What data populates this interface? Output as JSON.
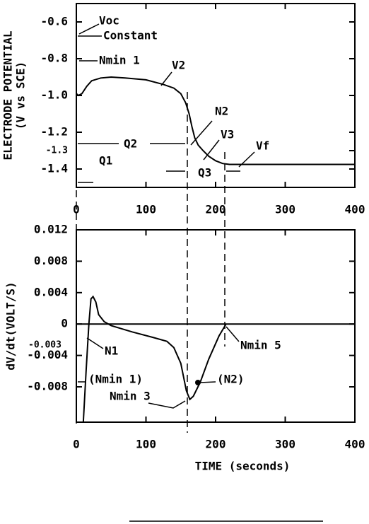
{
  "chart_data": [
    {
      "type": "line",
      "ylabel": "ELECTRODE POTENTIAL",
      "ylabel_sub": "(V vs SCE)",
      "x": [
        0,
        0,
        3,
        8,
        15,
        22,
        35,
        50,
        70,
        100,
        125,
        140,
        150,
        157,
        162,
        166,
        170,
        175,
        182,
        190,
        200,
        210,
        220,
        260,
        400
      ],
      "values": [
        -0.66,
        -0.99,
        -1.0,
        -0.99,
        -0.95,
        -0.92,
        -0.905,
        -0.9,
        -0.905,
        -0.915,
        -0.94,
        -0.96,
        -0.99,
        -1.04,
        -1.1,
        -1.17,
        -1.23,
        -1.27,
        -1.3,
        -1.33,
        -1.355,
        -1.37,
        -1.375,
        -1.375,
        -1.375
      ],
      "color": "#000000",
      "xlim": [
        0,
        400
      ],
      "xticks": [
        0,
        100,
        200,
        300,
        400
      ],
      "ylim": [
        -1.5,
        -0.5
      ],
      "yticks": [
        -0.6,
        -0.8,
        {
          "value": -1.0,
          "label": "-1.0"
        },
        -1.2,
        -1.3,
        -1.4
      ],
      "annotations": [
        "Voc",
        "Constant",
        "Nmin 1",
        "V2",
        "N2",
        "V3",
        "Vf",
        "Q2",
        "Q1",
        "Q3"
      ]
    },
    {
      "type": "line",
      "ylabel": "dV/dt(VOLT/S)",
      "xlabel": "TIME (seconds)",
      "x": [
        10,
        14,
        18,
        21,
        24,
        28,
        32,
        40,
        50,
        80,
        110,
        130,
        140,
        150,
        158,
        163,
        168,
        178,
        190,
        205,
        215
      ],
      "values": [
        -0.0125,
        -0.006,
        0,
        0.0032,
        0.0035,
        0.0028,
        0.0012,
        0.0003,
        -0.0002,
        -0.001,
        -0.0017,
        -0.0022,
        -0.003,
        -0.005,
        -0.0085,
        -0.0096,
        -0.0092,
        -0.0074,
        -0.0045,
        -0.0015,
        0
      ],
      "color": "#000000",
      "xlim": [
        0,
        400
      ],
      "xticks": [
        0,
        100,
        200,
        300,
        400
      ],
      "ylim": [
        -0.0125,
        0.012
      ],
      "yticks": [
        0.012,
        0.008,
        0.004,
        0,
        -0.004,
        -0.008
      ],
      "zero_line": true,
      "annotations": [
        "-0.003",
        "N1",
        "(Nmin 1)",
        "Nmin 3",
        "(N2)",
        "Nmin 5"
      ]
    }
  ]
}
